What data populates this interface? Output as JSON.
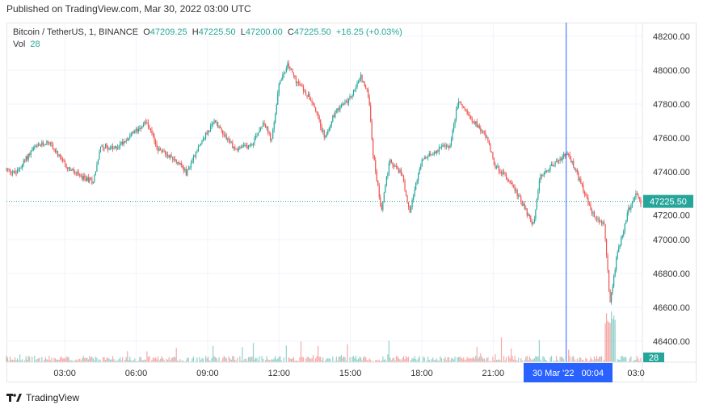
{
  "header": {
    "published": "Published on TradingView.com, Mar 30, 2022 03:00 UTC"
  },
  "legend": {
    "symbol": "Bitcoin / TetherUS, 1, BINANCE",
    "o_label": "O",
    "o": "47209.25",
    "h_label": "H",
    "h": "47225.50",
    "l_label": "L",
    "l": "47200.00",
    "c_label": "C",
    "c": "47225.50",
    "change": "+16.25 (+0.03%)",
    "vol_label": "Vol",
    "vol": "28"
  },
  "crosshair": {
    "label": "30 Mar '22   00:04"
  },
  "last_price_label": "47225.50",
  "volume_label": "28",
  "brand": "TradingView",
  "colors": {
    "up": "#26a69a",
    "down": "#ef5350",
    "crosshair": "#2962ff",
    "axis_label": "#2962ff"
  },
  "chart_data": {
    "type": "candlestick",
    "title": "Bitcoin / TetherUS, 1, BINANCE",
    "x_unit": "hours since 29 Mar 2022 00:00 UTC",
    "xlim": [
      0.55,
      27.27
    ],
    "ylim": [
      46276,
      48281
    ],
    "y_ticks": [
      48200,
      48000,
      47800,
      47600,
      47400,
      47200,
      47000,
      46800,
      46600,
      46400
    ],
    "y_tick_labels": [
      "48200.00",
      "48000.00",
      "47800.00",
      "47600.00",
      "47400.00",
      "47200.00",
      "47000.00",
      "46800.00",
      "46600.00",
      "46400.00"
    ],
    "x_ticks": [
      3,
      6,
      9,
      12,
      15,
      18,
      21,
      27
    ],
    "x_tick_labels": [
      "03:00",
      "06:00",
      "09:00",
      "12:00",
      "15:00",
      "18:00",
      "21:00",
      "03:0"
    ],
    "last_price": 47225.5,
    "crosshair_t": 24.07,
    "price_path": [
      [
        0.55,
        47414
      ],
      [
        0.95,
        47390
      ],
      [
        1.64,
        47533
      ],
      [
        2.32,
        47581
      ],
      [
        3,
        47438
      ],
      [
        3.68,
        47367
      ],
      [
        4.19,
        47343
      ],
      [
        4.53,
        47557
      ],
      [
        5.05,
        47533
      ],
      [
        5.9,
        47629
      ],
      [
        6.41,
        47700
      ],
      [
        6.92,
        47533
      ],
      [
        7.77,
        47462
      ],
      [
        8.11,
        47390
      ],
      [
        8.63,
        47557
      ],
      [
        9.31,
        47700
      ],
      [
        10.16,
        47533
      ],
      [
        10.84,
        47557
      ],
      [
        11.35,
        47700
      ],
      [
        11.69,
        47581
      ],
      [
        12.03,
        47938
      ],
      [
        12.38,
        48033
      ],
      [
        12.72,
        47938
      ],
      [
        13.4,
        47819
      ],
      [
        13.91,
        47605
      ],
      [
        14.42,
        47771
      ],
      [
        14.93,
        47819
      ],
      [
        15.44,
        47962
      ],
      [
        15.78,
        47843
      ],
      [
        15.95,
        47510
      ],
      [
        16.3,
        47176
      ],
      [
        16.64,
        47462
      ],
      [
        17.15,
        47390
      ],
      [
        17.49,
        47176
      ],
      [
        18,
        47462
      ],
      [
        18.68,
        47533
      ],
      [
        19.19,
        47557
      ],
      [
        19.53,
        47819
      ],
      [
        20.05,
        47724
      ],
      [
        20.73,
        47605
      ],
      [
        21.07,
        47438
      ],
      [
        21.75,
        47343
      ],
      [
        22.26,
        47200
      ],
      [
        22.71,
        47081
      ],
      [
        22.94,
        47367
      ],
      [
        23.46,
        47438
      ],
      [
        24.14,
        47510
      ],
      [
        24.65,
        47343
      ],
      [
        25.16,
        47152
      ],
      [
        25.67,
        47081
      ],
      [
        25.91,
        46629
      ],
      [
        26.18,
        46890
      ],
      [
        26.69,
        47176
      ],
      [
        27.03,
        47271
      ],
      [
        27.2,
        47224
      ]
    ]
  }
}
